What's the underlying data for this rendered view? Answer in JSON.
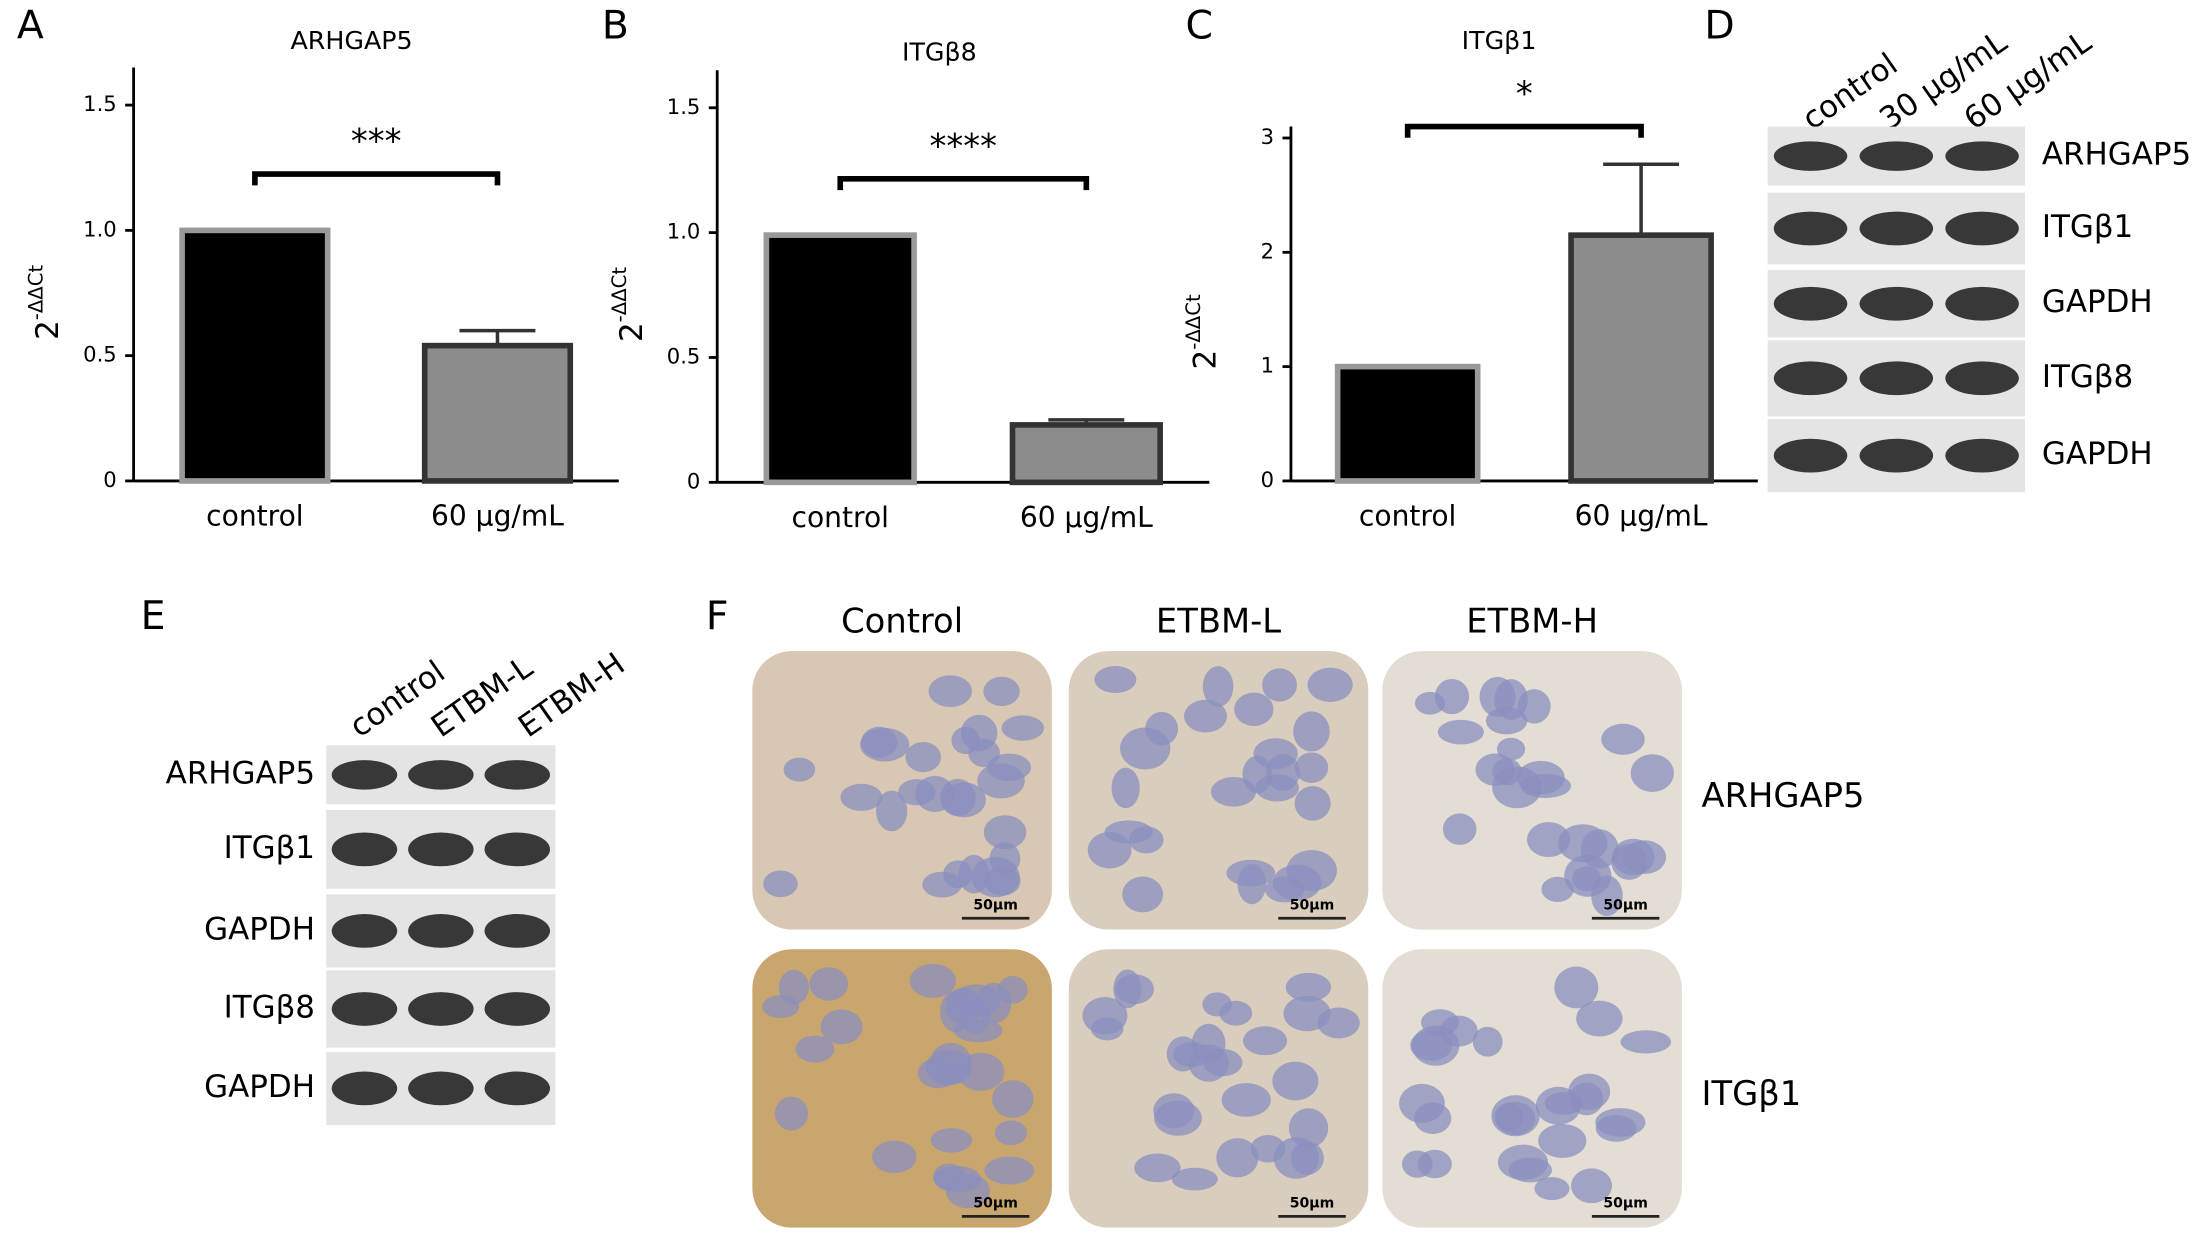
{
  "panels": [
    "A",
    "B",
    "C",
    "D",
    "E",
    "F"
  ],
  "chart_data": [
    {
      "type": "bar",
      "title": "ARHGAP5",
      "y_label": "2",
      "y_label_superscript": "-ΔΔCt",
      "categories": [
        "control",
        "60 µg/mL"
      ],
      "values": [
        1,
        0.54
      ],
      "errors": [
        null,
        0.06
      ],
      "colors": [
        "#000000",
        "#8c8c8c"
      ],
      "ylim": [
        0,
        1.65
      ],
      "yticks": [
        0,
        0.5,
        {
          "value": 1,
          "label": "1.0"
        },
        1.5
      ],
      "significance": "***"
    },
    {
      "type": "bar",
      "title": "ITGβ8",
      "y_label": "2",
      "y_label_superscript": "-ΔΔCt",
      "categories": [
        "control",
        "60 µg/mL"
      ],
      "values": [
        0.99,
        0.23
      ],
      "errors": [
        null,
        0.02
      ],
      "colors": [
        "#000000",
        "#8c8c8c"
      ],
      "ylim": [
        0,
        1.65
      ],
      "yticks": [
        0,
        0.5,
        {
          "value": 1,
          "label": "1.0"
        },
        1.5
      ],
      "significance": "****"
    },
    {
      "type": "bar",
      "title": "ITGβ1",
      "y_label": "2",
      "y_label_superscript": "-ΔΔCt",
      "categories": [
        "control",
        "60 µg/mL"
      ],
      "values": [
        1,
        2.15
      ],
      "errors": [
        null,
        0.62
      ],
      "colors": [
        "#000000",
        "#8c8c8c"
      ],
      "ylim": [
        0,
        3.1
      ],
      "yticks": [
        0,
        1,
        2,
        3
      ],
      "significance": "*"
    }
  ],
  "blot_d": {
    "columns": [
      "control",
      "30 µg/mL",
      "60 µg/mL"
    ],
    "rows": [
      "ARHGAP5",
      "ITGβ1",
      "GAPDH",
      "ITGβ8",
      "GAPDH"
    ]
  },
  "blot_e": {
    "columns": [
      "control",
      "ETBM-L",
      "ETBM-H"
    ],
    "rows": [
      "ARHGAP5",
      "ITGβ1",
      "GAPDH",
      "ITGβ8",
      "GAPDH"
    ]
  },
  "ihc": {
    "columns": [
      "Control",
      "ETBM-L",
      "ETBM-H"
    ],
    "rows": [
      "ARHGAP5",
      "ITGβ1"
    ],
    "scale_bars": [
      "50µm",
      "50µm",
      "50µm",
      "50µm",
      "50µm",
      "50µm"
    ]
  }
}
